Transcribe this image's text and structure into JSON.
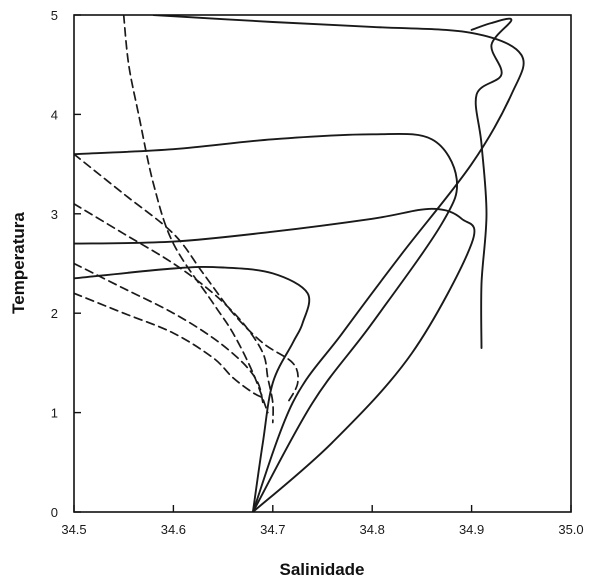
{
  "chart_data": {
    "type": "line",
    "xlabel": "Salinidade",
    "ylabel": "Temperatura",
    "xlim": [
      34.5,
      35.0
    ],
    "ylim": [
      0,
      5
    ],
    "x_ticks": [
      "34.5",
      "34.6",
      "34.7",
      "34.8",
      "34.9",
      "35.0"
    ],
    "y_ticks": [
      "0",
      "1",
      "2",
      "3",
      "4",
      "5"
    ],
    "grid": false,
    "legend": "none",
    "line_color": "#1a1a1a",
    "series": [
      {
        "style": "solid",
        "points": [
          [
            34.58,
            5.0
          ],
          [
            34.7,
            4.93
          ],
          [
            34.8,
            4.88
          ],
          [
            34.9,
            4.82
          ],
          [
            34.95,
            4.6
          ],
          [
            34.94,
            4.2
          ],
          [
            34.9,
            3.5
          ],
          [
            34.83,
            2.6
          ],
          [
            34.77,
            1.8
          ],
          [
            34.72,
            1.1
          ],
          [
            34.68,
            0.0
          ]
        ]
      },
      {
        "style": "solid",
        "points": [
          [
            34.5,
            3.6
          ],
          [
            34.6,
            3.65
          ],
          [
            34.7,
            3.75
          ],
          [
            34.8,
            3.8
          ],
          [
            34.86,
            3.75
          ],
          [
            34.885,
            3.35
          ],
          [
            34.87,
            2.9
          ],
          [
            34.8,
            1.9
          ],
          [
            34.74,
            1.1
          ],
          [
            34.68,
            0.0
          ]
        ]
      },
      {
        "style": "solid",
        "points": [
          [
            34.5,
            2.7
          ],
          [
            34.6,
            2.72
          ],
          [
            34.7,
            2.82
          ],
          [
            34.8,
            2.95
          ],
          [
            34.86,
            3.05
          ],
          [
            34.89,
            2.95
          ],
          [
            34.9,
            2.7
          ],
          [
            34.84,
            1.6
          ],
          [
            34.76,
            0.7
          ],
          [
            34.68,
            0.0
          ]
        ]
      },
      {
        "style": "solid",
        "points": [
          [
            34.5,
            2.35
          ],
          [
            34.6,
            2.45
          ],
          [
            34.65,
            2.46
          ],
          [
            34.7,
            2.4
          ],
          [
            34.735,
            2.2
          ],
          [
            34.73,
            1.9
          ],
          [
            34.72,
            1.7
          ],
          [
            34.7,
            1.3
          ],
          [
            34.69,
            0.7
          ],
          [
            34.68,
            0.0
          ]
        ]
      },
      {
        "style": "solid",
        "points": [
          [
            34.91,
            1.65
          ],
          [
            34.91,
            2.3
          ],
          [
            34.915,
            3.0
          ],
          [
            34.91,
            3.7
          ],
          [
            34.905,
            4.2
          ],
          [
            34.93,
            4.4
          ],
          [
            34.92,
            4.7
          ],
          [
            34.94,
            4.95
          ],
          [
            34.92,
            4.92
          ],
          [
            34.9,
            4.85
          ]
        ]
      },
      {
        "style": "dashed",
        "points": [
          [
            34.55,
            5.0
          ],
          [
            34.555,
            4.5
          ],
          [
            34.565,
            4.0
          ],
          [
            34.58,
            3.3
          ],
          [
            34.6,
            2.7
          ],
          [
            34.64,
            2.1
          ],
          [
            34.66,
            1.8
          ],
          [
            34.68,
            1.4
          ],
          [
            34.695,
            1.0
          ]
        ]
      },
      {
        "style": "dashed",
        "points": [
          [
            34.5,
            3.6
          ],
          [
            34.55,
            3.2
          ],
          [
            34.6,
            2.8
          ],
          [
            34.63,
            2.4
          ],
          [
            34.66,
            2.0
          ],
          [
            34.69,
            1.7
          ],
          [
            34.72,
            1.5
          ],
          [
            34.725,
            1.3
          ],
          [
            34.715,
            1.1
          ]
        ]
      },
      {
        "style": "dashed",
        "points": [
          [
            34.5,
            3.1
          ],
          [
            34.55,
            2.8
          ],
          [
            34.6,
            2.5
          ],
          [
            34.64,
            2.2
          ],
          [
            34.67,
            1.9
          ],
          [
            34.69,
            1.6
          ],
          [
            34.695,
            1.35
          ],
          [
            34.7,
            1.1
          ],
          [
            34.7,
            0.9
          ]
        ]
      },
      {
        "style": "dashed",
        "points": [
          [
            34.5,
            2.5
          ],
          [
            34.55,
            2.25
          ],
          [
            34.6,
            2.0
          ],
          [
            34.64,
            1.75
          ],
          [
            34.67,
            1.5
          ],
          [
            34.685,
            1.3
          ],
          [
            34.69,
            1.1
          ]
        ]
      },
      {
        "style": "dashed",
        "points": [
          [
            34.5,
            2.2
          ],
          [
            34.55,
            2.0
          ],
          [
            34.6,
            1.8
          ],
          [
            34.64,
            1.55
          ],
          [
            34.66,
            1.35
          ],
          [
            34.68,
            1.2
          ],
          [
            34.69,
            1.15
          ]
        ]
      }
    ]
  }
}
